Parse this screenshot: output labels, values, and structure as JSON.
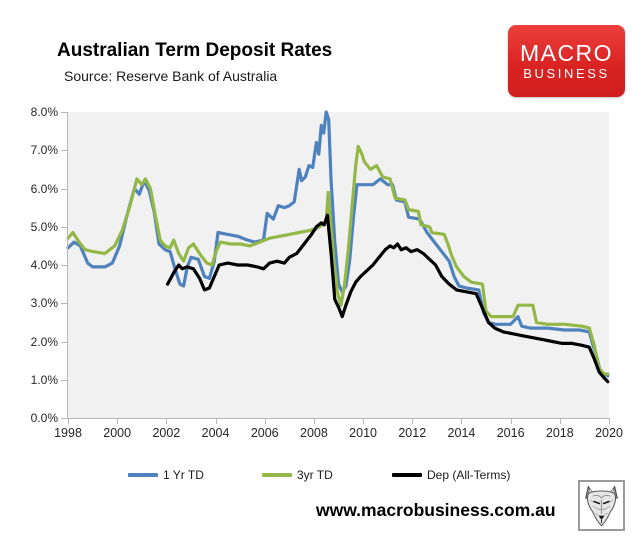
{
  "header": {
    "title": "Australian Term Deposit Rates",
    "subtitle": "Source: Reserve Bank of Australia"
  },
  "logo": {
    "line1": "MACRO",
    "line2": "BUSINESS",
    "bg_color": "#da2423",
    "text_color": "#ffffff"
  },
  "footer": {
    "website": "www.macrobusiness.com.au",
    "wolf_icon": "wolf-head-sketch-icon"
  },
  "chart_data": {
    "type": "line",
    "title": "Australian Term Deposit Rates",
    "subtitle": "Source: Reserve Bank of Australia",
    "xlabel": "",
    "ylabel": "",
    "xlim": [
      1998,
      2020
    ],
    "ylim": [
      0,
      8
    ],
    "grid": false,
    "plot_bg": "#f1f1f1",
    "axis_color": "#b7b7b7",
    "legend_position": "bottom",
    "x_ticks": [
      "1998",
      "2000",
      "2002",
      "2004",
      "2006",
      "2008",
      "2010",
      "2012",
      "2014",
      "2016",
      "2018",
      "2020"
    ],
    "y_ticks": [
      "8.0%",
      "7.0%",
      "6.0%",
      "5.0%",
      "4.0%",
      "3.0%",
      "2.0%",
      "1.0%",
      "0.0%"
    ],
    "series": [
      {
        "name": "1 Yr TD",
        "color": "#4f81bd",
        "points": [
          [
            1998.0,
            4.45
          ],
          [
            1998.25,
            4.6
          ],
          [
            1998.5,
            4.5
          ],
          [
            1998.8,
            4.05
          ],
          [
            1999.0,
            3.95
          ],
          [
            1999.5,
            3.95
          ],
          [
            1999.8,
            4.05
          ],
          [
            2000.1,
            4.5
          ],
          [
            2000.4,
            5.3
          ],
          [
            2000.7,
            6.0
          ],
          [
            2000.9,
            5.85
          ],
          [
            2001.1,
            6.2
          ],
          [
            2001.3,
            5.95
          ],
          [
            2001.5,
            5.4
          ],
          [
            2001.7,
            4.55
          ],
          [
            2001.95,
            4.4
          ],
          [
            2002.15,
            4.35
          ],
          [
            2002.35,
            3.9
          ],
          [
            2002.55,
            3.5
          ],
          [
            2002.7,
            3.45
          ],
          [
            2002.85,
            3.95
          ],
          [
            2003.0,
            4.2
          ],
          [
            2003.3,
            4.15
          ],
          [
            2003.55,
            3.7
          ],
          [
            2003.75,
            3.65
          ],
          [
            2003.95,
            4.1
          ],
          [
            2004.1,
            4.85
          ],
          [
            2004.5,
            4.8
          ],
          [
            2004.9,
            4.75
          ],
          [
            2005.3,
            4.65
          ],
          [
            2005.6,
            4.6
          ],
          [
            2005.95,
            4.65
          ],
          [
            2006.1,
            5.35
          ],
          [
            2006.35,
            5.2
          ],
          [
            2006.55,
            5.55
          ],
          [
            2006.8,
            5.5
          ],
          [
            2007.0,
            5.55
          ],
          [
            2007.2,
            5.65
          ],
          [
            2007.4,
            6.5
          ],
          [
            2007.5,
            6.2
          ],
          [
            2007.65,
            6.3
          ],
          [
            2007.8,
            6.6
          ],
          [
            2007.95,
            6.55
          ],
          [
            2008.1,
            7.2
          ],
          [
            2008.2,
            6.9
          ],
          [
            2008.3,
            7.65
          ],
          [
            2008.4,
            7.45
          ],
          [
            2008.5,
            8.05
          ],
          [
            2008.6,
            7.8
          ],
          [
            2008.7,
            6.2
          ],
          [
            2008.85,
            4.6
          ],
          [
            2009.0,
            3.5
          ],
          [
            2009.15,
            3.3
          ],
          [
            2009.3,
            3.45
          ],
          [
            2009.45,
            4.1
          ],
          [
            2009.6,
            5.2
          ],
          [
            2009.75,
            6.1
          ],
          [
            2010.0,
            6.1
          ],
          [
            2010.4,
            6.1
          ],
          [
            2010.7,
            6.25
          ],
          [
            2011.0,
            6.1
          ],
          [
            2011.2,
            6.1
          ],
          [
            2011.35,
            5.7
          ],
          [
            2011.7,
            5.65
          ],
          [
            2011.85,
            5.25
          ],
          [
            2012.3,
            5.2
          ],
          [
            2012.6,
            4.85
          ],
          [
            2012.9,
            4.6
          ],
          [
            2013.2,
            4.35
          ],
          [
            2013.5,
            4.1
          ],
          [
            2013.7,
            3.7
          ],
          [
            2013.9,
            3.45
          ],
          [
            2014.2,
            3.4
          ],
          [
            2014.7,
            3.35
          ],
          [
            2014.9,
            2.75
          ],
          [
            2015.1,
            2.5
          ],
          [
            2015.4,
            2.45
          ],
          [
            2016.0,
            2.45
          ],
          [
            2016.3,
            2.65
          ],
          [
            2016.45,
            2.4
          ],
          [
            2016.8,
            2.35
          ],
          [
            2017.5,
            2.35
          ],
          [
            2018.2,
            2.3
          ],
          [
            2018.8,
            2.3
          ],
          [
            2019.2,
            2.25
          ],
          [
            2019.35,
            1.9
          ],
          [
            2019.5,
            1.6
          ],
          [
            2019.65,
            1.2
          ],
          [
            2019.95,
            1.1
          ]
        ]
      },
      {
        "name": "3yr TD",
        "color": "#93b847",
        "points": [
          [
            1998.0,
            4.7
          ],
          [
            1998.2,
            4.85
          ],
          [
            1998.45,
            4.6
          ],
          [
            1998.7,
            4.4
          ],
          [
            1999.0,
            4.35
          ],
          [
            1999.5,
            4.3
          ],
          [
            1999.9,
            4.5
          ],
          [
            2000.2,
            4.9
          ],
          [
            2000.5,
            5.5
          ],
          [
            2000.8,
            6.25
          ],
          [
            2001.0,
            6.1
          ],
          [
            2001.15,
            6.25
          ],
          [
            2001.35,
            6.0
          ],
          [
            2001.55,
            5.3
          ],
          [
            2001.75,
            4.65
          ],
          [
            2001.95,
            4.5
          ],
          [
            2002.15,
            4.45
          ],
          [
            2002.3,
            4.65
          ],
          [
            2002.5,
            4.3
          ],
          [
            2002.7,
            4.1
          ],
          [
            2002.9,
            4.45
          ],
          [
            2003.1,
            4.55
          ],
          [
            2003.4,
            4.25
          ],
          [
            2003.65,
            4.05
          ],
          [
            2003.85,
            4.0
          ],
          [
            2004.05,
            4.4
          ],
          [
            2004.2,
            4.6
          ],
          [
            2004.6,
            4.55
          ],
          [
            2005.0,
            4.55
          ],
          [
            2005.4,
            4.5
          ],
          [
            2005.8,
            4.6
          ],
          [
            2006.2,
            4.7
          ],
          [
            2006.6,
            4.75
          ],
          [
            2007.0,
            4.8
          ],
          [
            2007.4,
            4.85
          ],
          [
            2007.8,
            4.9
          ],
          [
            2008.1,
            4.95
          ],
          [
            2008.35,
            5.05
          ],
          [
            2008.5,
            5.15
          ],
          [
            2008.58,
            5.9
          ],
          [
            2008.66,
            5.3
          ],
          [
            2008.8,
            4.2
          ],
          [
            2008.95,
            3.3
          ],
          [
            2009.1,
            2.95
          ],
          [
            2009.25,
            3.5
          ],
          [
            2009.4,
            4.4
          ],
          [
            2009.55,
            5.5
          ],
          [
            2009.7,
            6.6
          ],
          [
            2009.8,
            7.1
          ],
          [
            2009.95,
            6.9
          ],
          [
            2010.05,
            6.7
          ],
          [
            2010.3,
            6.5
          ],
          [
            2010.55,
            6.6
          ],
          [
            2010.8,
            6.3
          ],
          [
            2011.1,
            6.25
          ],
          [
            2011.3,
            5.75
          ],
          [
            2011.7,
            5.7
          ],
          [
            2011.85,
            5.45
          ],
          [
            2012.25,
            5.4
          ],
          [
            2012.35,
            5.05
          ],
          [
            2012.7,
            5.0
          ],
          [
            2012.8,
            4.85
          ],
          [
            2013.3,
            4.8
          ],
          [
            2013.45,
            4.55
          ],
          [
            2013.6,
            4.25
          ],
          [
            2013.8,
            3.95
          ],
          [
            2014.1,
            3.7
          ],
          [
            2014.4,
            3.55
          ],
          [
            2014.85,
            3.5
          ],
          [
            2015.0,
            2.8
          ],
          [
            2015.2,
            2.65
          ],
          [
            2015.6,
            2.65
          ],
          [
            2016.1,
            2.65
          ],
          [
            2016.3,
            2.95
          ],
          [
            2016.9,
            2.95
          ],
          [
            2017.05,
            2.5
          ],
          [
            2017.5,
            2.45
          ],
          [
            2018.2,
            2.45
          ],
          [
            2018.9,
            2.4
          ],
          [
            2019.2,
            2.35
          ],
          [
            2019.4,
            1.9
          ],
          [
            2019.6,
            1.3
          ],
          [
            2019.8,
            1.15
          ],
          [
            2019.95,
            1.15
          ]
        ]
      },
      {
        "name": "Dep (All-Terms)",
        "color": "#000000",
        "points": [
          [
            2002.05,
            3.5
          ],
          [
            2002.3,
            3.8
          ],
          [
            2002.5,
            4.0
          ],
          [
            2002.65,
            3.9
          ],
          [
            2002.85,
            3.95
          ],
          [
            2003.1,
            3.9
          ],
          [
            2003.35,
            3.65
          ],
          [
            2003.55,
            3.35
          ],
          [
            2003.75,
            3.4
          ],
          [
            2003.95,
            3.7
          ],
          [
            2004.15,
            4.0
          ],
          [
            2004.5,
            4.05
          ],
          [
            2004.9,
            4.0
          ],
          [
            2005.3,
            4.0
          ],
          [
            2005.7,
            3.95
          ],
          [
            2005.95,
            3.9
          ],
          [
            2006.2,
            4.05
          ],
          [
            2006.5,
            4.1
          ],
          [
            2006.8,
            4.05
          ],
          [
            2007.0,
            4.2
          ],
          [
            2007.3,
            4.3
          ],
          [
            2007.6,
            4.55
          ],
          [
            2007.9,
            4.8
          ],
          [
            2008.1,
            5.0
          ],
          [
            2008.3,
            5.1
          ],
          [
            2008.42,
            5.05
          ],
          [
            2008.55,
            5.3
          ],
          [
            2008.7,
            4.3
          ],
          [
            2008.85,
            3.1
          ],
          [
            2009.0,
            2.9
          ],
          [
            2009.15,
            2.65
          ],
          [
            2009.3,
            2.95
          ],
          [
            2009.5,
            3.3
          ],
          [
            2009.7,
            3.55
          ],
          [
            2009.9,
            3.7
          ],
          [
            2010.15,
            3.85
          ],
          [
            2010.4,
            4.0
          ],
          [
            2010.65,
            4.2
          ],
          [
            2010.9,
            4.4
          ],
          [
            2011.1,
            4.5
          ],
          [
            2011.25,
            4.45
          ],
          [
            2011.4,
            4.55
          ],
          [
            2011.55,
            4.4
          ],
          [
            2011.75,
            4.45
          ],
          [
            2011.95,
            4.35
          ],
          [
            2012.2,
            4.4
          ],
          [
            2012.45,
            4.3
          ],
          [
            2012.7,
            4.15
          ],
          [
            2012.95,
            4.0
          ],
          [
            2013.2,
            3.7
          ],
          [
            2013.5,
            3.5
          ],
          [
            2013.8,
            3.35
          ],
          [
            2014.2,
            3.3
          ],
          [
            2014.6,
            3.25
          ],
          [
            2014.9,
            2.8
          ],
          [
            2015.1,
            2.5
          ],
          [
            2015.35,
            2.35
          ],
          [
            2015.7,
            2.25
          ],
          [
            2016.1,
            2.2
          ],
          [
            2016.5,
            2.15
          ],
          [
            2016.9,
            2.1
          ],
          [
            2017.3,
            2.05
          ],
          [
            2017.7,
            2.0
          ],
          [
            2018.1,
            1.95
          ],
          [
            2018.5,
            1.95
          ],
          [
            2018.9,
            1.9
          ],
          [
            2019.2,
            1.85
          ],
          [
            2019.4,
            1.55
          ],
          [
            2019.6,
            1.2
          ],
          [
            2019.8,
            1.05
          ],
          [
            2019.95,
            0.95
          ]
        ]
      }
    ]
  }
}
